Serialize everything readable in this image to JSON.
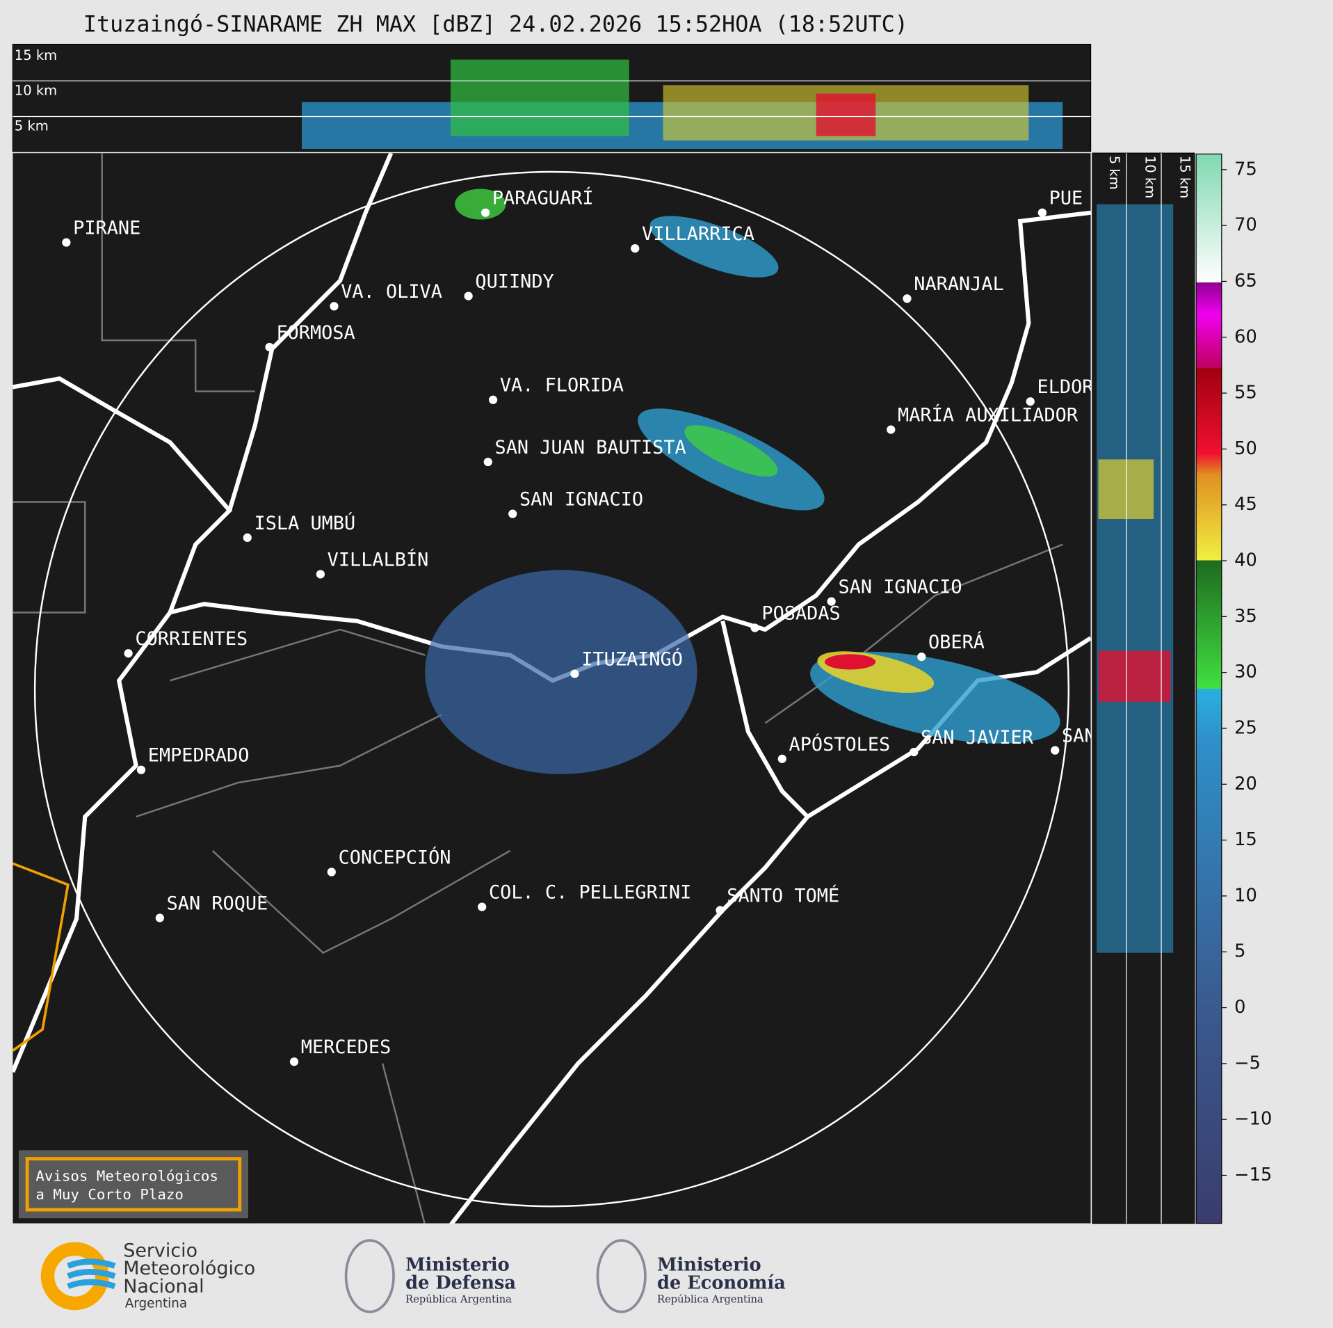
{
  "header": {
    "title": "Ituzaingó-SINARAME ZH MAX [dBZ] 24.02.2026 15:52HOA (18:52UTC)"
  },
  "top_panel": {
    "altitude_labels": [
      "15 km",
      "10 km",
      "5 km"
    ]
  },
  "side_panel": {
    "altitude_labels": [
      "5 km",
      "10 km",
      "15 km"
    ]
  },
  "map": {
    "cities": [
      "PIRANE",
      "PARAGUARÍ",
      "VILLARRICA",
      "VA. OLIVA",
      "QUIINDY",
      "NARANJAL",
      "FORMOSA",
      "VA. FLORIDA",
      "ELDOR",
      "MARÍA AUXILIADOR",
      "SAN JUAN BAUTISTA",
      "SAN IGNACIO",
      "ISLA UMBÚ",
      "VILLALBÍN",
      "SAN IGNACIO",
      "POSADAS",
      "CORRIENTES",
      "ITUZAINGÓ",
      "OBERÁ",
      "EMPEDRADO",
      "APÓSTOLES",
      "SAN JAVIER",
      "SAN",
      "CONCEPCIÓN",
      "COL. C. PELLEGRINI",
      "SANTO TOMÉ",
      "SAN ROQUE",
      "MERCEDES",
      "PUE"
    ]
  },
  "colorbar": {
    "lim": [
      -19.3,
      76.4
    ],
    "ticks": [
      75,
      70,
      65,
      60,
      55,
      50,
      45,
      40,
      35,
      30,
      25,
      20,
      15,
      10,
      5,
      0,
      {
        "value": -5,
        "label": "−5"
      },
      {
        "value": -10,
        "label": "−10"
      },
      {
        "value": -15,
        "label": "−15"
      }
    ]
  },
  "warning_box": {
    "lines": [
      "Avisos Meteorológicos",
      "a Muy Corto Plazo"
    ]
  },
  "footer": {
    "logos": [
      {
        "lines": [
          "Servicio",
          "Meteorológico",
          "Nacional",
          "Argentina"
        ]
      },
      {
        "lines": [
          "Ministerio",
          "de Defensa",
          "República Argentina"
        ]
      },
      {
        "lines": [
          "Ministerio",
          "de Economía",
          "República Argentina"
        ]
      }
    ]
  }
}
